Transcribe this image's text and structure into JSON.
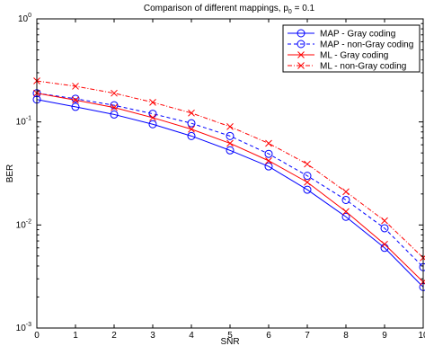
{
  "chart_data": {
    "type": "line",
    "title": "Comparison of different mappings, p",
    "title_subscript": "0",
    "title_suffix": " = 0.1",
    "xlabel": "SNR",
    "ylabel": "BER",
    "xlim": [
      0,
      10
    ],
    "ylim": [
      0.001,
      1
    ],
    "yscale": "log",
    "grid": false,
    "legend_position": "top-right",
    "x": [
      0,
      1,
      2,
      3,
      4,
      5,
      6,
      7,
      8,
      9,
      10
    ],
    "x_ticks": [
      "0",
      "1",
      "2",
      "3",
      "4",
      "5",
      "6",
      "7",
      "8",
      "9",
      "10"
    ],
    "y_ticks": [
      {
        "value": 0.001,
        "base": "10",
        "exp": "-3"
      },
      {
        "value": 0.01,
        "base": "10",
        "exp": "-2"
      },
      {
        "value": 0.1,
        "base": "10",
        "exp": "-1"
      },
      {
        "value": 1,
        "base": "10",
        "exp": "0"
      }
    ],
    "series": [
      {
        "name": "MAP - Gray coding",
        "color": "#0000ff",
        "line_style": "solid",
        "marker": "circle",
        "values": [
          0.165,
          0.14,
          0.118,
          0.095,
          0.073,
          0.053,
          0.037,
          0.022,
          0.012,
          0.006,
          0.0025
        ]
      },
      {
        "name": "MAP - non-Gray coding",
        "color": "#0000ff",
        "line_style": "dashed",
        "marker": "circle",
        "values": [
          0.19,
          0.168,
          0.145,
          0.12,
          0.097,
          0.073,
          0.049,
          0.03,
          0.0175,
          0.0093,
          0.0039
        ]
      },
      {
        "name": "ML - Gray coding",
        "color": "#ff0000",
        "line_style": "solid",
        "marker": "x",
        "values": [
          0.19,
          0.163,
          0.138,
          0.11,
          0.085,
          0.062,
          0.042,
          0.026,
          0.0135,
          0.0065,
          0.0028
        ]
      },
      {
        "name": "ML - non-Gray coding",
        "color": "#ff0000",
        "line_style": "dashdot",
        "marker": "x",
        "values": [
          0.25,
          0.222,
          0.19,
          0.155,
          0.122,
          0.09,
          0.062,
          0.039,
          0.021,
          0.011,
          0.0048
        ]
      }
    ]
  }
}
